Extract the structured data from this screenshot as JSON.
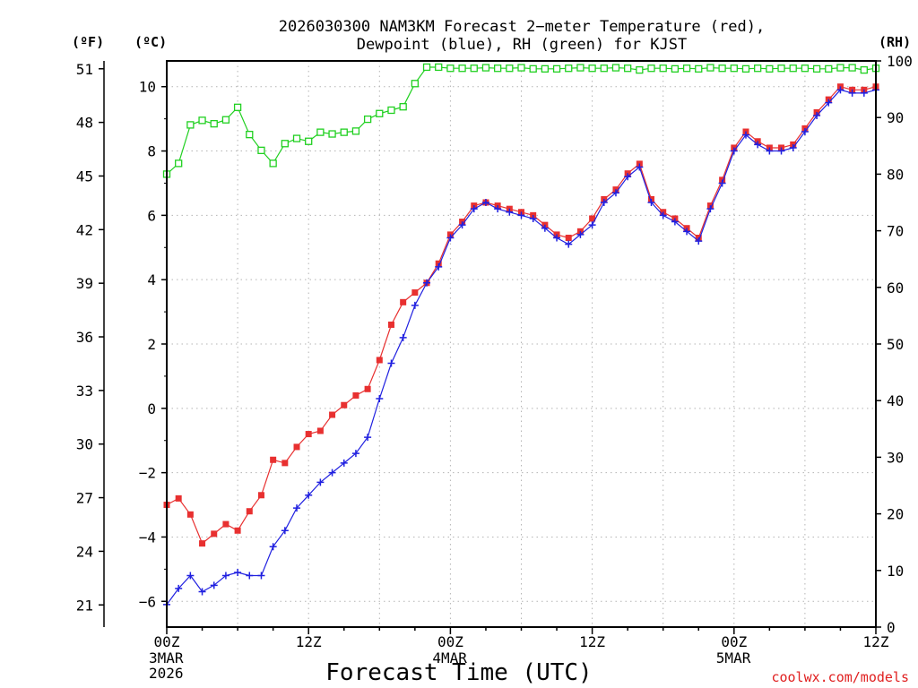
{
  "chart_data": {
    "type": "line",
    "title_line1": "2026030300 NAM3KM Forecast 2−meter Temperature (red),",
    "title_line2": "Dewpoint (blue), RH (green) for KJST",
    "xlabel": "Forecast Time (UTC)",
    "credit": "coolwx.com/models",
    "units": {
      "fahrenheit": "(ºF)",
      "celsius": "(ºC)",
      "rh": "(RH)"
    },
    "x_range_hours": [
      0,
      60
    ],
    "celsius_range": [
      -6.8,
      10.8
    ],
    "rh_range": [
      0,
      100
    ],
    "x_ticks": [
      {
        "hour": 0,
        "label": "00Z",
        "sub1": "3MAR",
        "sub2": "2026"
      },
      {
        "hour": 12,
        "label": "12Z",
        "sub1": "",
        "sub2": ""
      },
      {
        "hour": 24,
        "label": "00Z",
        "sub1": "4MAR",
        "sub2": ""
      },
      {
        "hour": 36,
        "label": "12Z",
        "sub1": "",
        "sub2": ""
      },
      {
        "hour": 48,
        "label": "00Z",
        "sub1": "5MAR",
        "sub2": ""
      },
      {
        "hour": 60,
        "label": "12Z",
        "sub1": "",
        "sub2": ""
      }
    ],
    "celsius_ticks": [
      "−6",
      "−4",
      "−2",
      "0",
      "2",
      "4",
      "6",
      "8",
      "10"
    ],
    "fahrenheit_ticks": [
      "21",
      "24",
      "27",
      "30",
      "33",
      "36",
      "39",
      "42",
      "45",
      "48",
      "51"
    ],
    "rh_ticks": [
      "0",
      "10",
      "20",
      "30",
      "40",
      "50",
      "60",
      "70",
      "80",
      "90",
      "100"
    ],
    "hours": [
      0,
      1,
      2,
      3,
      4,
      5,
      6,
      7,
      8,
      9,
      10,
      11,
      12,
      13,
      14,
      15,
      16,
      17,
      18,
      19,
      20,
      21,
      22,
      23,
      24,
      25,
      26,
      27,
      28,
      29,
      30,
      31,
      32,
      33,
      34,
      35,
      36,
      37,
      38,
      39,
      40,
      41,
      42,
      43,
      44,
      45,
      46,
      47,
      48,
      49,
      50,
      51,
      52,
      53,
      54,
      55,
      56,
      57,
      58,
      59,
      60
    ],
    "series": [
      {
        "name": "Temperature",
        "unit": "C",
        "color": "#e83030",
        "marker": "filled-square",
        "values": [
          -3.0,
          -2.8,
          -3.3,
          -4.2,
          -3.9,
          -3.6,
          -3.8,
          -3.2,
          -2.7,
          -1.6,
          -1.7,
          -1.2,
          -0.8,
          -0.7,
          -0.2,
          0.1,
          0.4,
          0.6,
          1.5,
          2.6,
          3.3,
          3.6,
          3.9,
          4.5,
          5.4,
          5.8,
          6.3,
          6.4,
          6.3,
          6.2,
          6.1,
          6.0,
          5.7,
          5.4,
          5.3,
          5.5,
          5.9,
          6.5,
          6.8,
          7.3,
          7.6,
          6.5,
          6.1,
          5.9,
          5.6,
          5.3,
          6.3,
          7.1,
          8.1,
          8.6,
          8.3,
          8.1,
          8.1,
          8.2,
          8.7,
          9.2,
          9.6,
          10.0,
          9.9,
          9.9,
          10.0
        ]
      },
      {
        "name": "Dewpoint",
        "unit": "C",
        "color": "#2020e0",
        "marker": "plus",
        "values": [
          -6.1,
          -5.6,
          -5.2,
          -5.7,
          -5.5,
          -5.2,
          -5.1,
          -5.2,
          -5.2,
          -4.3,
          -3.8,
          -3.1,
          -2.7,
          -2.3,
          -2.0,
          -1.7,
          -1.4,
          -0.9,
          0.3,
          1.4,
          2.2,
          3.2,
          3.9,
          4.4,
          5.3,
          5.7,
          6.2,
          6.4,
          6.2,
          6.1,
          6.0,
          5.9,
          5.6,
          5.3,
          5.1,
          5.4,
          5.7,
          6.4,
          6.7,
          7.2,
          7.5,
          6.4,
          6.0,
          5.8,
          5.5,
          5.2,
          6.2,
          7.0,
          8.0,
          8.5,
          8.2,
          8.0,
          8.0,
          8.1,
          8.6,
          9.1,
          9.5,
          9.9,
          9.8,
          9.8,
          9.9
        ]
      },
      {
        "name": "RH",
        "unit": "%",
        "color": "#20d020",
        "marker": "open-square",
        "values": [
          80.0,
          81.9,
          88.7,
          89.5,
          88.9,
          89.6,
          91.8,
          87.0,
          84.2,
          81.9,
          85.4,
          86.3,
          85.8,
          87.4,
          87.1,
          87.4,
          87.6,
          89.7,
          90.7,
          91.3,
          91.9,
          96.0,
          98.9,
          98.9,
          98.7,
          98.7,
          98.7,
          98.8,
          98.7,
          98.7,
          98.8,
          98.6,
          98.6,
          98.6,
          98.7,
          98.8,
          98.7,
          98.7,
          98.8,
          98.7,
          98.4,
          98.7,
          98.7,
          98.6,
          98.7,
          98.6,
          98.8,
          98.7,
          98.7,
          98.6,
          98.7,
          98.6,
          98.7,
          98.7,
          98.7,
          98.6,
          98.6,
          98.8,
          98.8,
          98.4,
          98.7
        ]
      }
    ]
  }
}
